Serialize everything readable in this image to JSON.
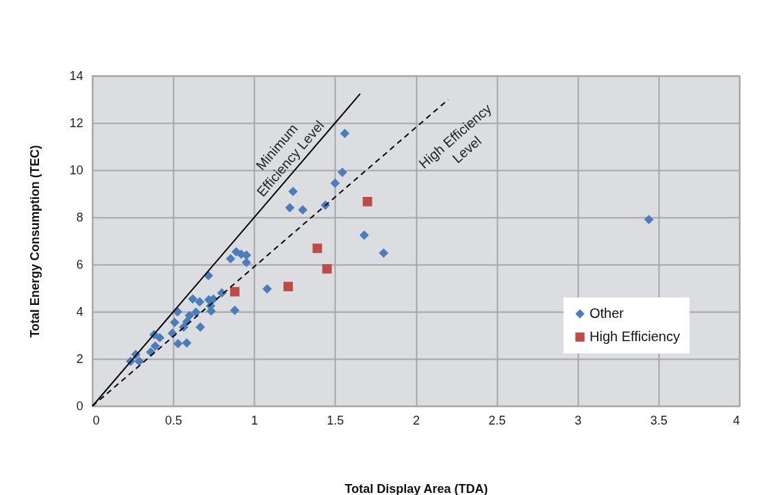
{
  "chart_data": {
    "type": "scatter",
    "xlabel": "Total Display Area (TDA)",
    "ylabel": "Total Energy Consumption (TEC)",
    "xlim": [
      0,
      4
    ],
    "xticks": [
      0,
      0.5,
      1,
      1.5,
      2,
      2.5,
      3,
      3.5,
      4
    ],
    "ylim": [
      0,
      14
    ],
    "yticks": [
      0,
      2,
      4,
      6,
      8,
      10,
      12,
      14
    ],
    "grid": true,
    "legend": "bottom right",
    "series": [
      {
        "name": "Other",
        "marker": "diamond",
        "color": "#4a7ebb",
        "x": [
          1.56,
          1.545,
          1.5,
          1.24,
          1.22,
          1.3,
          1.44,
          1.68,
          1.8,
          3.44,
          1.08,
          0.854,
          0.889,
          0.92,
          0.952,
          0.952,
          0.717,
          0.8,
          0.62,
          0.663,
          0.72,
          0.748,
          0.73,
          0.734,
          0.88,
          0.526,
          0.64,
          0.6,
          0.585,
          0.508,
          0.564,
          0.667,
          0.494,
          0.529,
          0.583,
          0.381,
          0.416,
          0.388,
          0.36,
          0.268,
          0.236,
          0.289
        ],
        "values": [
          11.56,
          9.91,
          9.45,
          9.1,
          8.41,
          8.32,
          8.52,
          7.25,
          6.49,
          7.91,
          4.97,
          6.25,
          6.54,
          6.44,
          6.4,
          6.09,
          5.53,
          4.8,
          4.54,
          4.42,
          4.51,
          4.54,
          4.25,
          4.03,
          4.06,
          4.0,
          3.98,
          3.84,
          3.59,
          3.55,
          3.35,
          3.35,
          3.09,
          2.65,
          2.68,
          3.03,
          2.9,
          2.55,
          2.29,
          2.19,
          1.9,
          1.9
        ]
      },
      {
        "name": "High Efficiency",
        "marker": "square",
        "color": "#be4b48",
        "x": [
          1.7,
          1.39,
          1.45,
          1.21,
          0.88
        ],
        "values": [
          8.67,
          6.69,
          5.82,
          5.07,
          4.85
        ]
      },
      {
        "type": "line",
        "color": "#000000",
        "line_style": "solid",
        "x": [
          0,
          1.655
        ],
        "values": [
          0,
          13.24
        ]
      },
      {
        "type": "line",
        "color": "#000000",
        "line_style": "dashed",
        "x": [
          0,
          2.2
        ],
        "values": [
          0,
          13.0
        ]
      }
    ],
    "annotations": [
      "Minimum\nEfficiency Level",
      "High Efficiency\nLevel"
    ]
  }
}
